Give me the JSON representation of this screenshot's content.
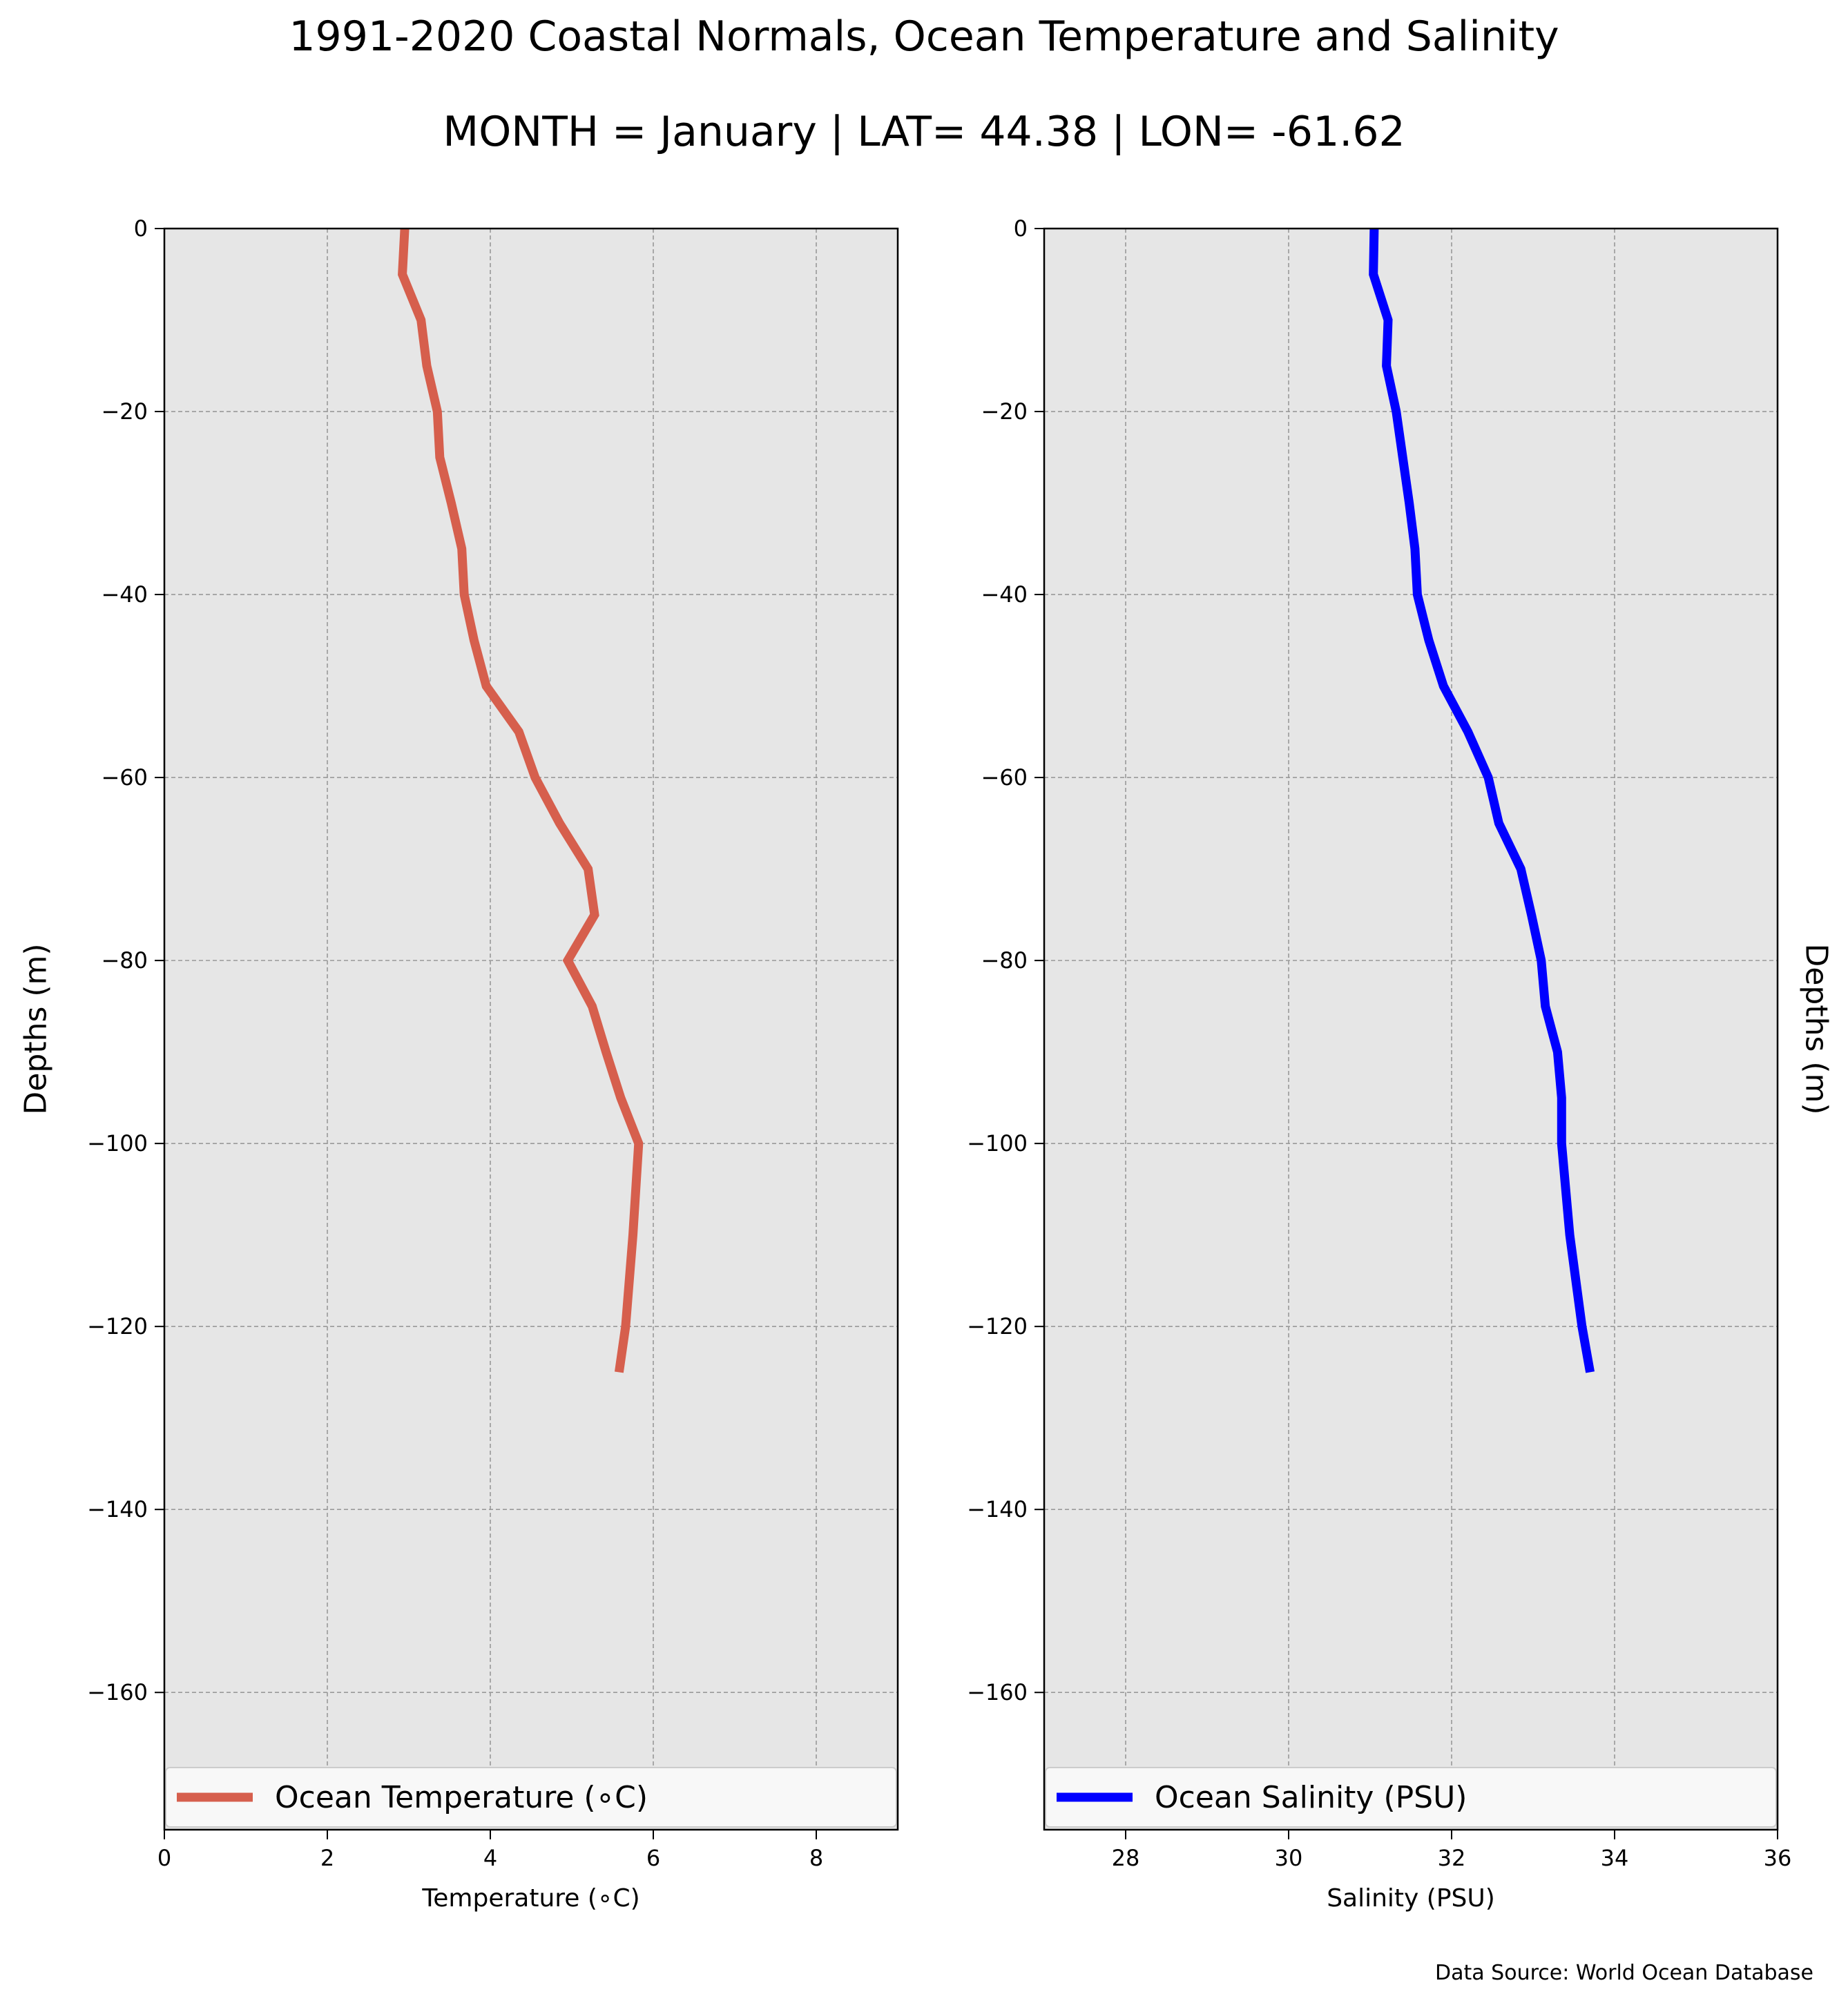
{
  "figure": {
    "title": "1991-2020 Coastal Normals, Ocean Temperature and Salinity",
    "subtitle": "MONTH = January | LAT= 44.38 | LON= -61.62",
    "source_note": "Data Source: World Ocean Database"
  },
  "colors": {
    "panel_background": "#e6e6e6",
    "grid": "#999999",
    "temperature_line": "#d65f4d",
    "salinity_line": "#0000ff",
    "legend_background": "#f8f8f8"
  },
  "chart_data": [
    {
      "type": "line",
      "orientation": "profile (depth on y-axis)",
      "xlabel": "Temperature (∘C)",
      "ylabel": "Depths (m)",
      "xlim": [
        0,
        9
      ],
      "ylim": [
        -175,
        0
      ],
      "x_ticks": [
        0,
        2,
        4,
        6,
        8
      ],
      "x_tick_labels": [
        "0",
        "2",
        "4",
        "6",
        "8"
      ],
      "y_ticks": [
        0,
        -20,
        -40,
        -60,
        -80,
        -100,
        -120,
        -140,
        -160
      ],
      "y_tick_labels": [
        "0",
        "−20",
        "−40",
        "−60",
        "−80",
        "−100",
        "−120",
        "−140",
        "−160"
      ],
      "grid": true,
      "legend_position": "bottom (full width)",
      "series": [
        {
          "name": "Ocean Temperature (∘C)",
          "color": "#d65f4d",
          "points": [
            {
              "x": 2.95,
              "y": 0
            },
            {
              "x": 2.92,
              "y": -5
            },
            {
              "x": 3.15,
              "y": -10
            },
            {
              "x": 3.22,
              "y": -15
            },
            {
              "x": 3.35,
              "y": -20
            },
            {
              "x": 3.38,
              "y": -25
            },
            {
              "x": 3.52,
              "y": -30
            },
            {
              "x": 3.65,
              "y": -35
            },
            {
              "x": 3.68,
              "y": -40
            },
            {
              "x": 3.8,
              "y": -45
            },
            {
              "x": 3.95,
              "y": -50
            },
            {
              "x": 4.35,
              "y": -55
            },
            {
              "x": 4.55,
              "y": -60
            },
            {
              "x": 4.85,
              "y": -65
            },
            {
              "x": 5.2,
              "y": -70
            },
            {
              "x": 5.28,
              "y": -75
            },
            {
              "x": 4.95,
              "y": -80
            },
            {
              "x": 5.25,
              "y": -85
            },
            {
              "x": 5.42,
              "y": -90
            },
            {
              "x": 5.6,
              "y": -95
            },
            {
              "x": 5.82,
              "y": -100
            },
            {
              "x": 5.75,
              "y": -110
            },
            {
              "x": 5.66,
              "y": -120
            },
            {
              "x": 5.58,
              "y": -125
            }
          ]
        }
      ]
    },
    {
      "type": "line",
      "orientation": "profile (depth on y-axis)",
      "xlabel": "Salinity (PSU)",
      "ylabel": "Depths (m)",
      "xlim": [
        27,
        36
      ],
      "ylim": [
        -175,
        0
      ],
      "x_ticks": [
        28,
        30,
        32,
        34,
        36
      ],
      "x_tick_labels": [
        "28",
        "30",
        "32",
        "34",
        "36"
      ],
      "y_ticks": [
        0,
        -20,
        -40,
        -60,
        -80,
        -100,
        -120,
        -140,
        -160
      ],
      "y_tick_labels": [
        "0",
        "−20",
        "−40",
        "−60",
        "−80",
        "−100",
        "−120",
        "−140",
        "−160"
      ],
      "grid": true,
      "legend_position": "bottom (full width)",
      "series": [
        {
          "name": "Ocean Salinity (PSU)",
          "color": "#0000ff",
          "points": [
            {
              "x": 31.05,
              "y": 0
            },
            {
              "x": 31.04,
              "y": -5
            },
            {
              "x": 31.22,
              "y": -10
            },
            {
              "x": 31.2,
              "y": -15
            },
            {
              "x": 31.32,
              "y": -20
            },
            {
              "x": 31.4,
              "y": -25
            },
            {
              "x": 31.48,
              "y": -30
            },
            {
              "x": 31.55,
              "y": -35
            },
            {
              "x": 31.58,
              "y": -40
            },
            {
              "x": 31.72,
              "y": -45
            },
            {
              "x": 31.9,
              "y": -50
            },
            {
              "x": 32.2,
              "y": -55
            },
            {
              "x": 32.45,
              "y": -60
            },
            {
              "x": 32.58,
              "y": -65
            },
            {
              "x": 32.85,
              "y": -70
            },
            {
              "x": 32.98,
              "y": -75
            },
            {
              "x": 33.1,
              "y": -80
            },
            {
              "x": 33.15,
              "y": -85
            },
            {
              "x": 33.3,
              "y": -90
            },
            {
              "x": 33.35,
              "y": -95
            },
            {
              "x": 33.35,
              "y": -100
            },
            {
              "x": 33.45,
              "y": -110
            },
            {
              "x": 33.6,
              "y": -120
            },
            {
              "x": 33.7,
              "y": -125
            }
          ]
        }
      ]
    }
  ]
}
